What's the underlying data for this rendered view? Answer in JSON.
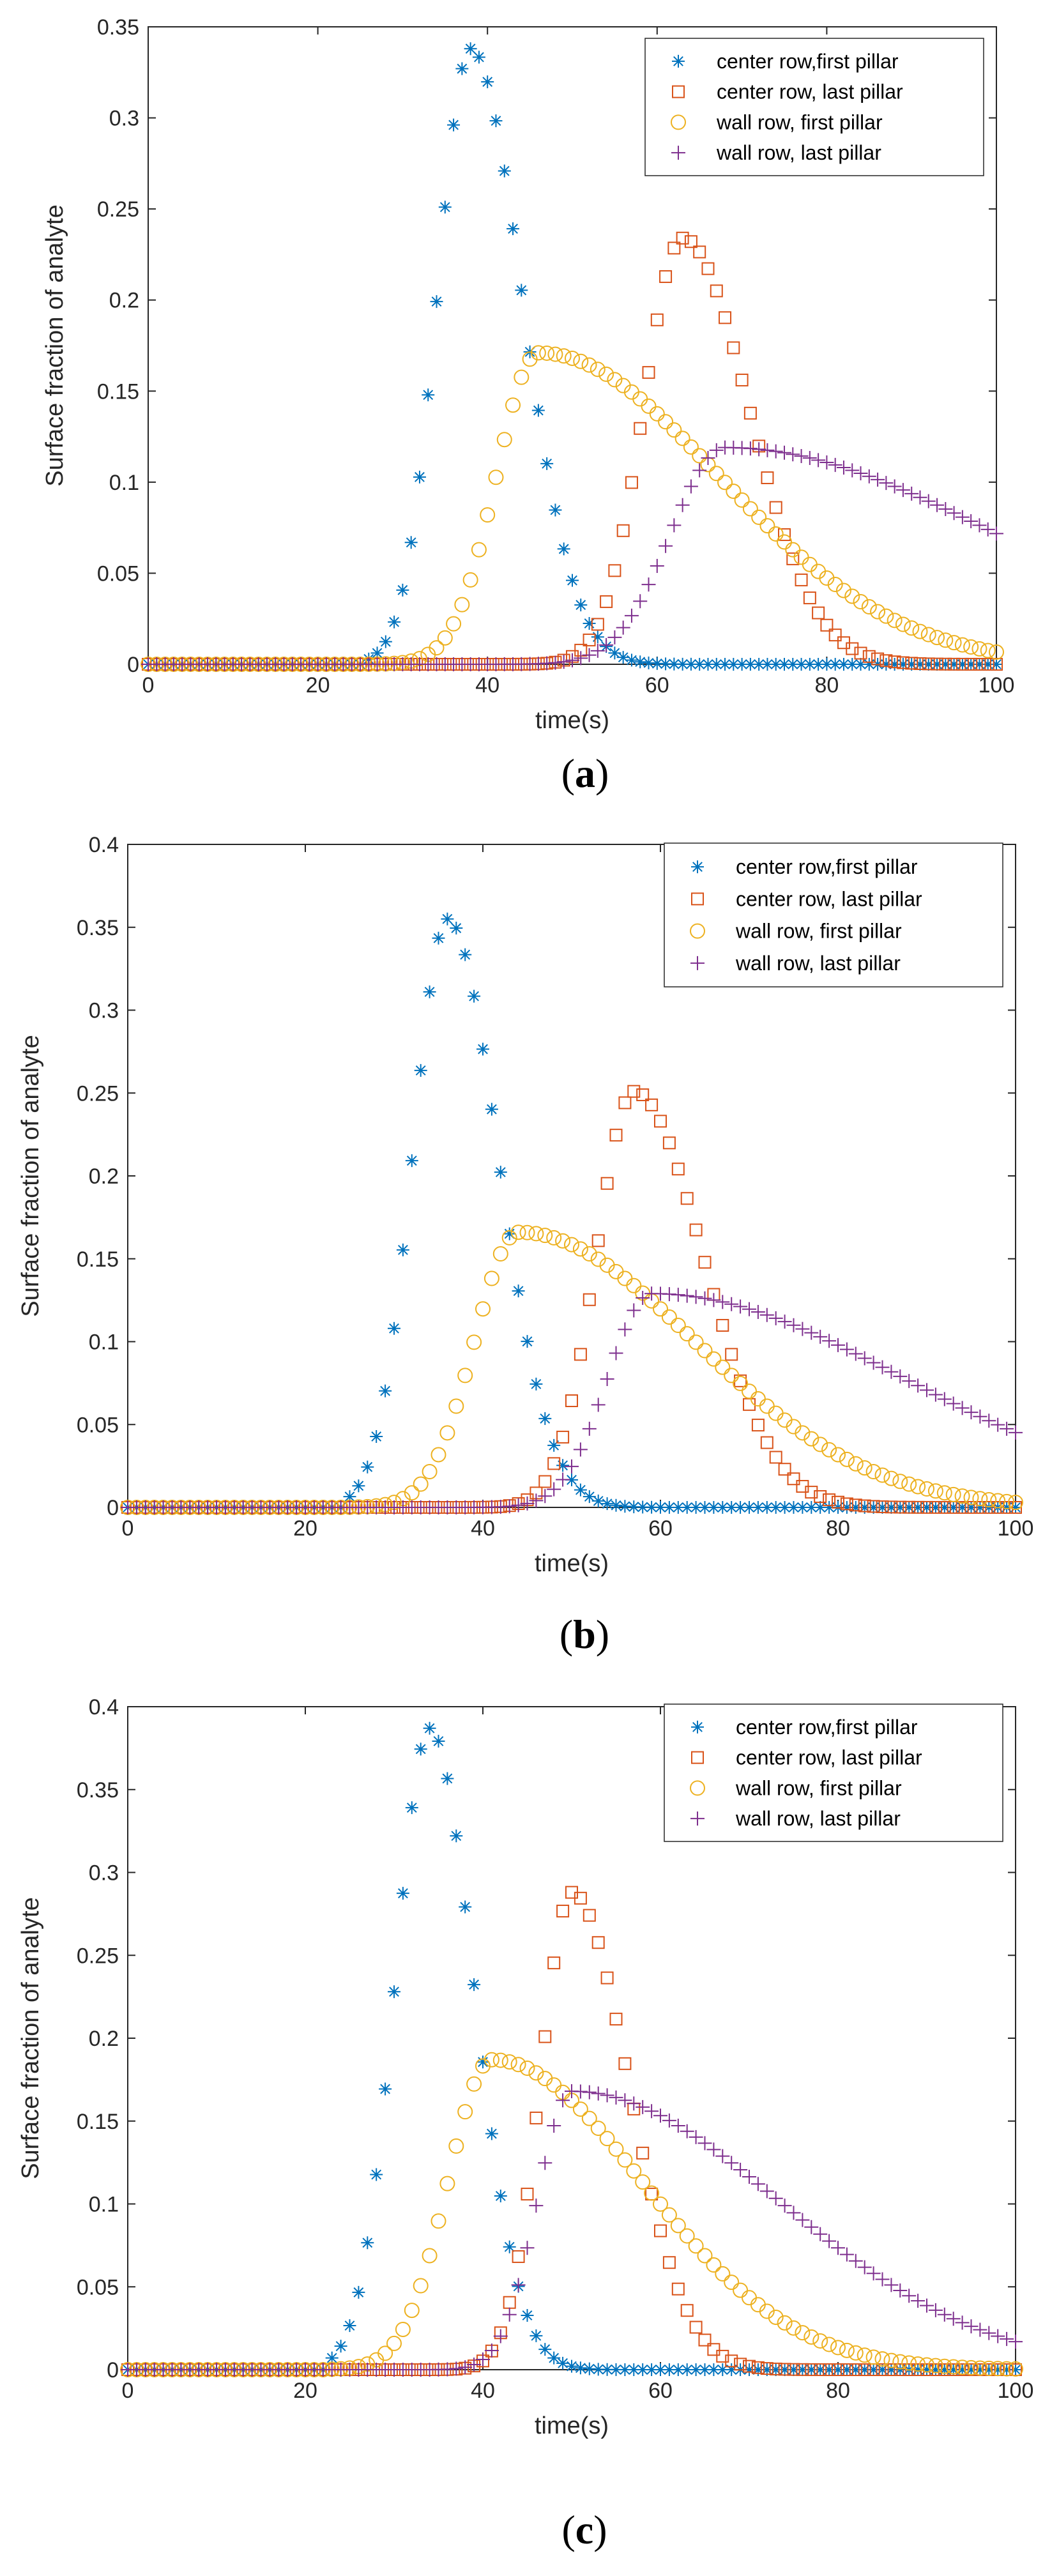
{
  "chart_data": [
    {
      "type": "scatter",
      "caption_open": "(",
      "caption_letter": "a",
      "caption_close": ")",
      "xlabel": "time(s)",
      "ylabel": "Surface fraction of analyte",
      "xlim": [
        0,
        100
      ],
      "ylim": [
        0,
        0.35
      ],
      "xticks": [
        0,
        20,
        40,
        60,
        80,
        100
      ],
      "yticks": [
        0,
        0.05,
        0.1,
        0.15,
        0.2,
        0.25,
        0.3,
        0.35
      ],
      "ytick_labels": [
        "0",
        "0.05",
        "0.1",
        "0.15",
        "0.2",
        "0.25",
        "0.3",
        "0.35"
      ],
      "legend_position": "top-right",
      "series": [
        {
          "name": "center row,first pillar",
          "marker": "asterisk",
          "color": "#0072BD",
          "peak_x": 38,
          "peak_y": 0.338,
          "rise_width": 5.5,
          "fall_width": 8.5,
          "onset_x": 26
        },
        {
          "name": "center row, last pillar",
          "marker": "square",
          "color": "#D95319",
          "peak_x": 63,
          "peak_y": 0.234,
          "rise_width": 6.5,
          "fall_width": 11,
          "onset_x": 40
        },
        {
          "name": "wall row, first pillar",
          "marker": "circle",
          "color": "#EDB120",
          "peak_x": 46,
          "peak_y": 0.171,
          "rise_width": 7,
          "fall_width": 30,
          "onset_x": 26
        },
        {
          "name": "wall row, last pillar",
          "marker": "plus",
          "color": "#7E2F8E",
          "peak_x": 68,
          "peak_y": 0.119,
          "rise_width": 9,
          "fall_width": 45,
          "onset_x": 40
        }
      ]
    },
    {
      "type": "scatter",
      "caption_open": "(",
      "caption_letter": "b",
      "caption_close": ")",
      "xlabel": "time(s)",
      "ylabel": "Surface fraction of analyte",
      "xlim": [
        0,
        100
      ],
      "ylim": [
        0,
        0.4
      ],
      "xticks": [
        0,
        20,
        40,
        60,
        80,
        100
      ],
      "yticks": [
        0,
        0.05,
        0.1,
        0.15,
        0.2,
        0.25,
        0.3,
        0.35,
        0.4
      ],
      "ytick_labels": [
        "0",
        "0.05",
        "0.1",
        "0.15",
        "0.2",
        "0.25",
        "0.3",
        "0.35",
        "0.4"
      ],
      "legend_position": "top-right",
      "series": [
        {
          "name": "center row,first pillar",
          "marker": "asterisk",
          "color": "#0072BD",
          "peak_x": 36,
          "peak_y": 0.355,
          "rise_width": 5.5,
          "fall_width": 8,
          "onset_x": 25
        },
        {
          "name": "center row, last pillar",
          "marker": "square",
          "color": "#D95319",
          "peak_x": 57,
          "peak_y": 0.251,
          "rise_width": 6,
          "fall_width": 11,
          "onset_x": 38
        },
        {
          "name": "wall row, first pillar",
          "marker": "circle",
          "color": "#EDB120",
          "peak_x": 44,
          "peak_y": 0.166,
          "rise_width": 7,
          "fall_width": 28,
          "onset_x": 25
        },
        {
          "name": "wall row, last pillar",
          "marker": "plus",
          "color": "#7E2F8E",
          "peak_x": 59,
          "peak_y": 0.129,
          "rise_width": 7,
          "fall_width": 40,
          "onset_x": 38
        }
      ]
    },
    {
      "type": "scatter",
      "caption_open": "(",
      "caption_letter": "c",
      "caption_close": ")",
      "xlabel": "time(s)",
      "ylabel": "Surface fraction of analyte",
      "xlim": [
        0,
        100
      ],
      "ylim": [
        0,
        0.4
      ],
      "xticks": [
        0,
        20,
        40,
        60,
        80,
        100
      ],
      "yticks": [
        0,
        0.05,
        0.1,
        0.15,
        0.2,
        0.25,
        0.3,
        0.35,
        0.4
      ],
      "ytick_labels": [
        "0",
        "0.05",
        "0.1",
        "0.15",
        "0.2",
        "0.25",
        "0.3",
        "0.35",
        "0.4"
      ],
      "legend_position": "top-right",
      "series": [
        {
          "name": "center row,first pillar",
          "marker": "asterisk",
          "color": "#0072BD",
          "peak_x": 34,
          "peak_y": 0.387,
          "rise_width": 5.5,
          "fall_width": 7,
          "onset_x": 23
        },
        {
          "name": "center row, last pillar",
          "marker": "square",
          "color": "#D95319",
          "peak_x": 50,
          "peak_y": 0.288,
          "rise_width": 5,
          "fall_width": 9,
          "onset_x": 35
        },
        {
          "name": "wall row, first pillar",
          "marker": "circle",
          "color": "#EDB120",
          "peak_x": 41,
          "peak_y": 0.187,
          "rise_width": 7,
          "fall_width": 24,
          "onset_x": 23
        },
        {
          "name": "wall row, last pillar",
          "marker": "plus",
          "color": "#7E2F8E",
          "peak_x": 50,
          "peak_y": 0.168,
          "rise_width": 5.5,
          "fall_width": 33,
          "onset_x": 35
        }
      ]
    }
  ]
}
